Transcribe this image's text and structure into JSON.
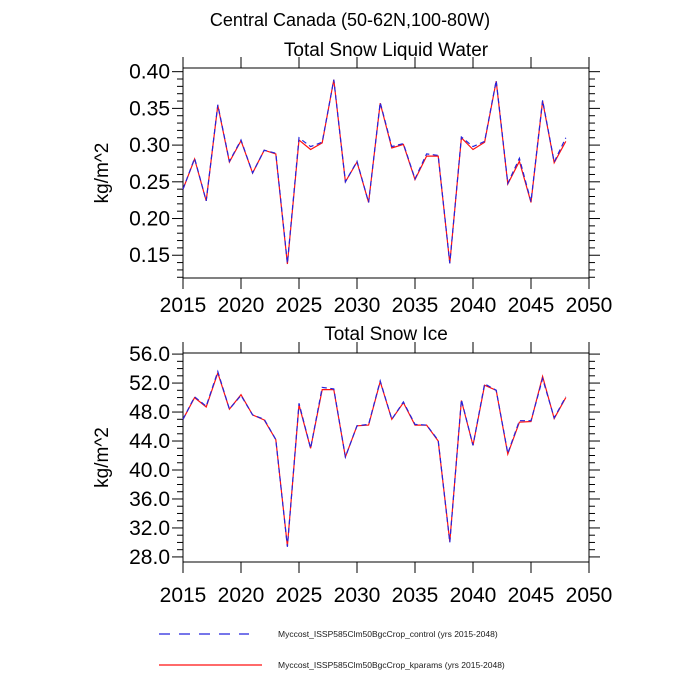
{
  "main_title": "Central Canada (50-62N,100-80W)",
  "colors": {
    "control": "#2424dd",
    "kparams": "#ff1111",
    "axis": "#000000"
  },
  "legend": {
    "position": "below-left",
    "items": [
      {
        "name": "control",
        "style": "dashed",
        "color": "#2424dd",
        "label": "Myccost_ISSP585Clm50BgcCrop_control (yrs 2015-2048)"
      },
      {
        "name": "kparams",
        "style": "solid",
        "color": "#ff1111",
        "label": "Myccost_ISSP585Clm50BgcCrop_kparams (yrs 2015-2048)"
      }
    ]
  },
  "chart_data": [
    {
      "type": "line",
      "title": "Total Snow Liquid Water",
      "ylabel": "kg/m^2",
      "grid": false,
      "xlim": [
        2015,
        2050
      ],
      "ylim": [
        0.119,
        0.405
      ],
      "xticks": {
        "values": [
          2015,
          2020,
          2025,
          2030,
          2035,
          2040,
          2045,
          2050
        ],
        "labels": [
          "2015",
          "2020",
          "2025",
          "2030",
          "2035",
          "2040",
          "2045",
          "2050"
        ]
      },
      "yticks": {
        "values": [
          0.15,
          0.2,
          0.25,
          0.3,
          0.35,
          0.4
        ],
        "labels": [
          "0.15",
          "0.20",
          "0.25",
          "0.30",
          "0.35",
          "0.40"
        ],
        "minor_step": 0.01
      },
      "x": [
        2015,
        2016,
        2017,
        2018,
        2019,
        2020,
        2021,
        2022,
        2023,
        2024,
        2025,
        2026,
        2027,
        2028,
        2029,
        2030,
        2031,
        2032,
        2033,
        2034,
        2035,
        2036,
        2037,
        2038,
        2039,
        2040,
        2041,
        2042,
        2043,
        2044,
        2045,
        2046,
        2047,
        2048
      ],
      "series": [
        {
          "name": "Myccost_ISSP585Clm50BgcCrop_control",
          "color": "#2424dd",
          "dash": true,
          "values": [
            0.24,
            0.282,
            0.224,
            0.355,
            0.278,
            0.307,
            0.262,
            0.293,
            0.289,
            0.139,
            0.31,
            0.298,
            0.304,
            0.389,
            0.25,
            0.278,
            0.222,
            0.358,
            0.298,
            0.302,
            0.254,
            0.288,
            0.286,
            0.139,
            0.311,
            0.298,
            0.305,
            0.388,
            0.248,
            0.282,
            0.223,
            0.361,
            0.277,
            0.31
          ]
        },
        {
          "name": "Myccost_ISSP585Clm50BgcCrop_kparams",
          "color": "#ff1111",
          "dash": false,
          "values": [
            0.24,
            0.281,
            0.224,
            0.354,
            0.277,
            0.306,
            0.262,
            0.293,
            0.288,
            0.138,
            0.307,
            0.294,
            0.303,
            0.389,
            0.25,
            0.277,
            0.222,
            0.357,
            0.296,
            0.301,
            0.253,
            0.285,
            0.285,
            0.139,
            0.31,
            0.294,
            0.304,
            0.387,
            0.247,
            0.278,
            0.222,
            0.36,
            0.276,
            0.305
          ]
        }
      ]
    },
    {
      "type": "line",
      "title": "Total Snow Ice",
      "ylabel": "kg/m^2",
      "grid": false,
      "xlim": [
        2015,
        2050
      ],
      "ylim": [
        27.3,
        56.15
      ],
      "xticks": {
        "values": [
          2015,
          2020,
          2025,
          2030,
          2035,
          2040,
          2045,
          2050
        ],
        "labels": [
          "2015",
          "2020",
          "2025",
          "2030",
          "2035",
          "2040",
          "2045",
          "2050"
        ]
      },
      "yticks": {
        "values": [
          28.0,
          32.0,
          36.0,
          40.0,
          44.0,
          48.0,
          52.0,
          56.0
        ],
        "labels": [
          "28.0",
          "32.0",
          "36.0",
          "40.0",
          "44.0",
          "48.0",
          "52.0",
          "56.0"
        ],
        "minor_step": 1.0
      },
      "x": [
        2015,
        2016,
        2017,
        2018,
        2019,
        2020,
        2021,
        2022,
        2023,
        2024,
        2025,
        2026,
        2027,
        2028,
        2029,
        2030,
        2031,
        2032,
        2033,
        2034,
        2035,
        2036,
        2037,
        2038,
        2039,
        2040,
        2041,
        2042,
        2043,
        2044,
        2045,
        2046,
        2047,
        2048
      ],
      "series": [
        {
          "name": "Myccost_ISSP585Clm50BgcCrop_control",
          "color": "#2424dd",
          "dash": true,
          "values": [
            47.0,
            50.1,
            48.8,
            53.6,
            48.4,
            50.3,
            47.6,
            47.0,
            44.2,
            29.4,
            49.2,
            43.0,
            51.4,
            51.2,
            41.8,
            46.1,
            46.3,
            52.3,
            47.0,
            49.4,
            46.3,
            46.2,
            44.1,
            30.0,
            49.7,
            43.4,
            51.9,
            51.0,
            42.3,
            46.8,
            46.8,
            52.6,
            47.2,
            50.1
          ]
        },
        {
          "name": "Myccost_ISSP585Clm50BgcCrop_kparams",
          "color": "#ff1111",
          "dash": false,
          "values": [
            47.0,
            50.0,
            48.7,
            53.4,
            48.4,
            50.4,
            47.6,
            46.9,
            44.2,
            29.5,
            49.0,
            43.0,
            51.1,
            51.1,
            41.8,
            46.1,
            46.2,
            52.2,
            47.0,
            49.3,
            46.2,
            46.2,
            44.0,
            30.1,
            49.6,
            43.4,
            51.7,
            51.0,
            42.2,
            46.6,
            46.7,
            52.9,
            47.1,
            50.0
          ]
        }
      ]
    }
  ]
}
